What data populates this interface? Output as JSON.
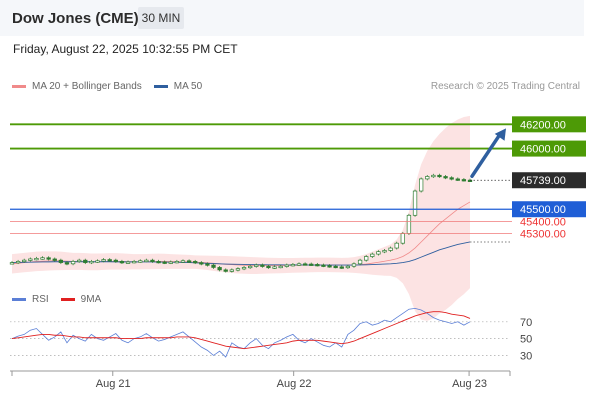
{
  "header": {
    "title": "Dow Jones (CME)",
    "timeframe": "30 MIN"
  },
  "datetime": "Friday, August 22, 2025 10:32:55 PM CET",
  "legend": {
    "ma20_label": "MA 20 + Bollinger Bands",
    "ma50_label": "MA 50",
    "ma20_color": "#f08a8a",
    "ma50_color": "#2f5f9f"
  },
  "credit": "Research © 2025 Trading Central",
  "rsi_legend": {
    "rsi_label": "RSI",
    "ma9_label": "9MA",
    "rsi_color": "#5b7fd6",
    "ma9_color": "#e02020"
  },
  "colors": {
    "target": "#4d9a06",
    "support": "#1f5ed6",
    "current": "#2b2b2b",
    "pivot_red": "#f07a7a",
    "arrow": "#2f5f9f",
    "candle": "#2e7d32"
  },
  "chart_data": {
    "type": "line",
    "x_ticks": [
      "Aug 21",
      "Aug 22",
      "Aug 23"
    ],
    "price_levels": [
      {
        "value": 46200,
        "label": "46200.00",
        "kind": "target"
      },
      {
        "value": 46000,
        "label": "46000.00",
        "kind": "target"
      },
      {
        "value": 45739,
        "label": "45739.00",
        "kind": "current"
      },
      {
        "value": 45500,
        "label": "45500.00",
        "kind": "support"
      },
      {
        "value": 45400,
        "label": "45400.00",
        "kind": "pivot"
      },
      {
        "value": 45300,
        "label": "45300.00",
        "kind": "pivot"
      }
    ],
    "ylim": [
      44900,
      46450
    ],
    "price_close": [
      45060,
      45070,
      45080,
      45090,
      45095,
      45100,
      45090,
      45080,
      45060,
      45050,
      45070,
      45080,
      45060,
      45070,
      45075,
      45085,
      45080,
      45070,
      45060,
      45065,
      45070,
      45075,
      45080,
      45070,
      45065,
      45060,
      45065,
      45070,
      45075,
      45070,
      45060,
      45050,
      45040,
      45020,
      45000,
      44990,
      45000,
      45010,
      45020,
      45030,
      45040,
      45030,
      45020,
      45025,
      45030,
      45040,
      45045,
      45050,
      45048,
      45045,
      45040,
      45035,
      45030,
      45025,
      45020,
      45030,
      45050,
      45080,
      45110,
      45130,
      45150,
      45160,
      45180,
      45220,
      45300,
      45450,
      45650,
      45750,
      45770,
      45780,
      45770,
      45760,
      45750,
      45745,
      45740,
      45739
    ],
    "ma20": [
      45050,
      45055,
      45060,
      45065,
      45070,
      45072,
      45074,
      45075,
      45074,
      45072,
      45070,
      45070,
      45068,
      45066,
      45066,
      45068,
      45070,
      45070,
      45069,
      45068,
      45067,
      45067,
      45068,
      45069,
      45070,
      45070,
      45069,
      45068,
      45067,
      45066,
      45064,
      45061,
      45058,
      45054,
      45050,
      45046,
      45043,
      45040,
      45038,
      45036,
      45035,
      45035,
      45035,
      45035,
      45035,
      45036,
      45037,
      45038,
      45039,
      45040,
      45041,
      45041,
      45041,
      45040,
      45039,
      45039,
      45040,
      45043,
      45048,
      45055,
      45063,
      45071,
      45080,
      45092,
      45110,
      45140,
      45180,
      45230,
      45280,
      45330,
      45380,
      45420,
      45460,
      45500,
      45530,
      45560
    ],
    "ma50": [
      45060,
      45061,
      45062,
      45063,
      45064,
      45065,
      45066,
      45067,
      45067,
      45067,
      45067,
      45067,
      45067,
      45067,
      45067,
      45067,
      45067,
      45066,
      45066,
      45066,
      45066,
      45065,
      45065,
      45065,
      45064,
      45064,
      45063,
      45062,
      45061,
      45060,
      45058,
      45056,
      45054,
      45052,
      45050,
      45048,
      45047,
      45046,
      45045,
      45044,
      45043,
      45043,
      45042,
      45042,
      45042,
      45041,
      45041,
      45041,
      45041,
      45040,
      45040,
      45040,
      45040,
      45040,
      45040,
      45040,
      45040,
      45041,
      45042,
      45044,
      45046,
      45048,
      45050,
      45054,
      45060,
      45070,
      45085,
      45105,
      45125,
      45145,
      45165,
      45180,
      45195,
      45210,
      45220,
      45230
    ],
    "bb_upper": [
      45130,
      45135,
      45140,
      45145,
      45150,
      45152,
      45153,
      45153,
      45150,
      45145,
      45140,
      45140,
      45138,
      45135,
      45135,
      45136,
      45138,
      45138,
      45136,
      45133,
      45130,
      45130,
      45131,
      45133,
      45134,
      45133,
      45130,
      45128,
      45126,
      45124,
      45120,
      45118,
      45117,
      45116,
      45115,
      45114,
      45112,
      45110,
      45108,
      45106,
      45104,
      45102,
      45100,
      45099,
      45098,
      45098,
      45098,
      45099,
      45100,
      45100,
      45101,
      45101,
      45101,
      45100,
      45099,
      45100,
      45105,
      45115,
      45130,
      45150,
      45170,
      45190,
      45210,
      45250,
      45330,
      45480,
      45700,
      45870,
      45980,
      46060,
      46120,
      46170,
      46210,
      46240,
      46260,
      46270
    ],
    "bb_lower": [
      44970,
      44975,
      44980,
      44985,
      44990,
      44992,
      44995,
      44997,
      44998,
      44999,
      45000,
      45000,
      44998,
      44997,
      44997,
      45000,
      45002,
      45002,
      45002,
      45003,
      45004,
      45004,
      45005,
      45005,
      45006,
      45007,
      45008,
      45008,
      45008,
      45008,
      45008,
      45004,
      44999,
      44992,
      44985,
      44978,
      44974,
      44970,
      44968,
      44966,
      44966,
      44968,
      44970,
      44971,
      44972,
      44974,
      44976,
      44977,
      44978,
      44980,
      44981,
      44981,
      44981,
      44980,
      44979,
      44978,
      44975,
      44971,
      44966,
      44960,
      44956,
      44952,
      44950,
      44934,
      44890,
      44800,
      44660,
      44590,
      44580,
      44600,
      44640,
      44670,
      44710,
      44760,
      44800,
      44850
    ],
    "rsi_levels": [
      {
        "value": 70,
        "label": "70"
      },
      {
        "value": 50,
        "label": "50"
      },
      {
        "value": 30,
        "label": "30"
      }
    ],
    "rsi_ylim": [
      15,
      90
    ],
    "rsi": [
      50,
      53,
      55,
      60,
      62,
      55,
      48,
      52,
      58,
      45,
      54,
      50,
      47,
      55,
      50,
      48,
      52,
      56,
      48,
      45,
      50,
      52,
      56,
      51,
      47,
      49,
      52,
      55,
      58,
      52,
      46,
      40,
      36,
      30,
      35,
      28,
      45,
      40,
      38,
      45,
      50,
      42,
      38,
      45,
      48,
      52,
      55,
      48,
      45,
      50,
      46,
      42,
      40,
      45,
      40,
      55,
      60,
      68,
      70,
      66,
      68,
      72,
      70,
      75,
      80,
      85,
      86,
      84,
      80,
      75,
      72,
      70,
      68,
      70,
      66,
      70
    ],
    "rsi_ma9": [
      50,
      51,
      52,
      53,
      54,
      55,
      55,
      54,
      54,
      53,
      52,
      52,
      51,
      51,
      51,
      51,
      51,
      51,
      50,
      50,
      50,
      50,
      51,
      51,
      51,
      51,
      51,
      52,
      52,
      52,
      51,
      49,
      47,
      45,
      43,
      41,
      40,
      39,
      38,
      39,
      40,
      41,
      42,
      43,
      44,
      45,
      47,
      48,
      48,
      48,
      48,
      47,
      46,
      45,
      44,
      45,
      47,
      50,
      53,
      56,
      59,
      62,
      65,
      68,
      71,
      74,
      77,
      79,
      81,
      82,
      82,
      81,
      79,
      78,
      77,
      74
    ]
  }
}
